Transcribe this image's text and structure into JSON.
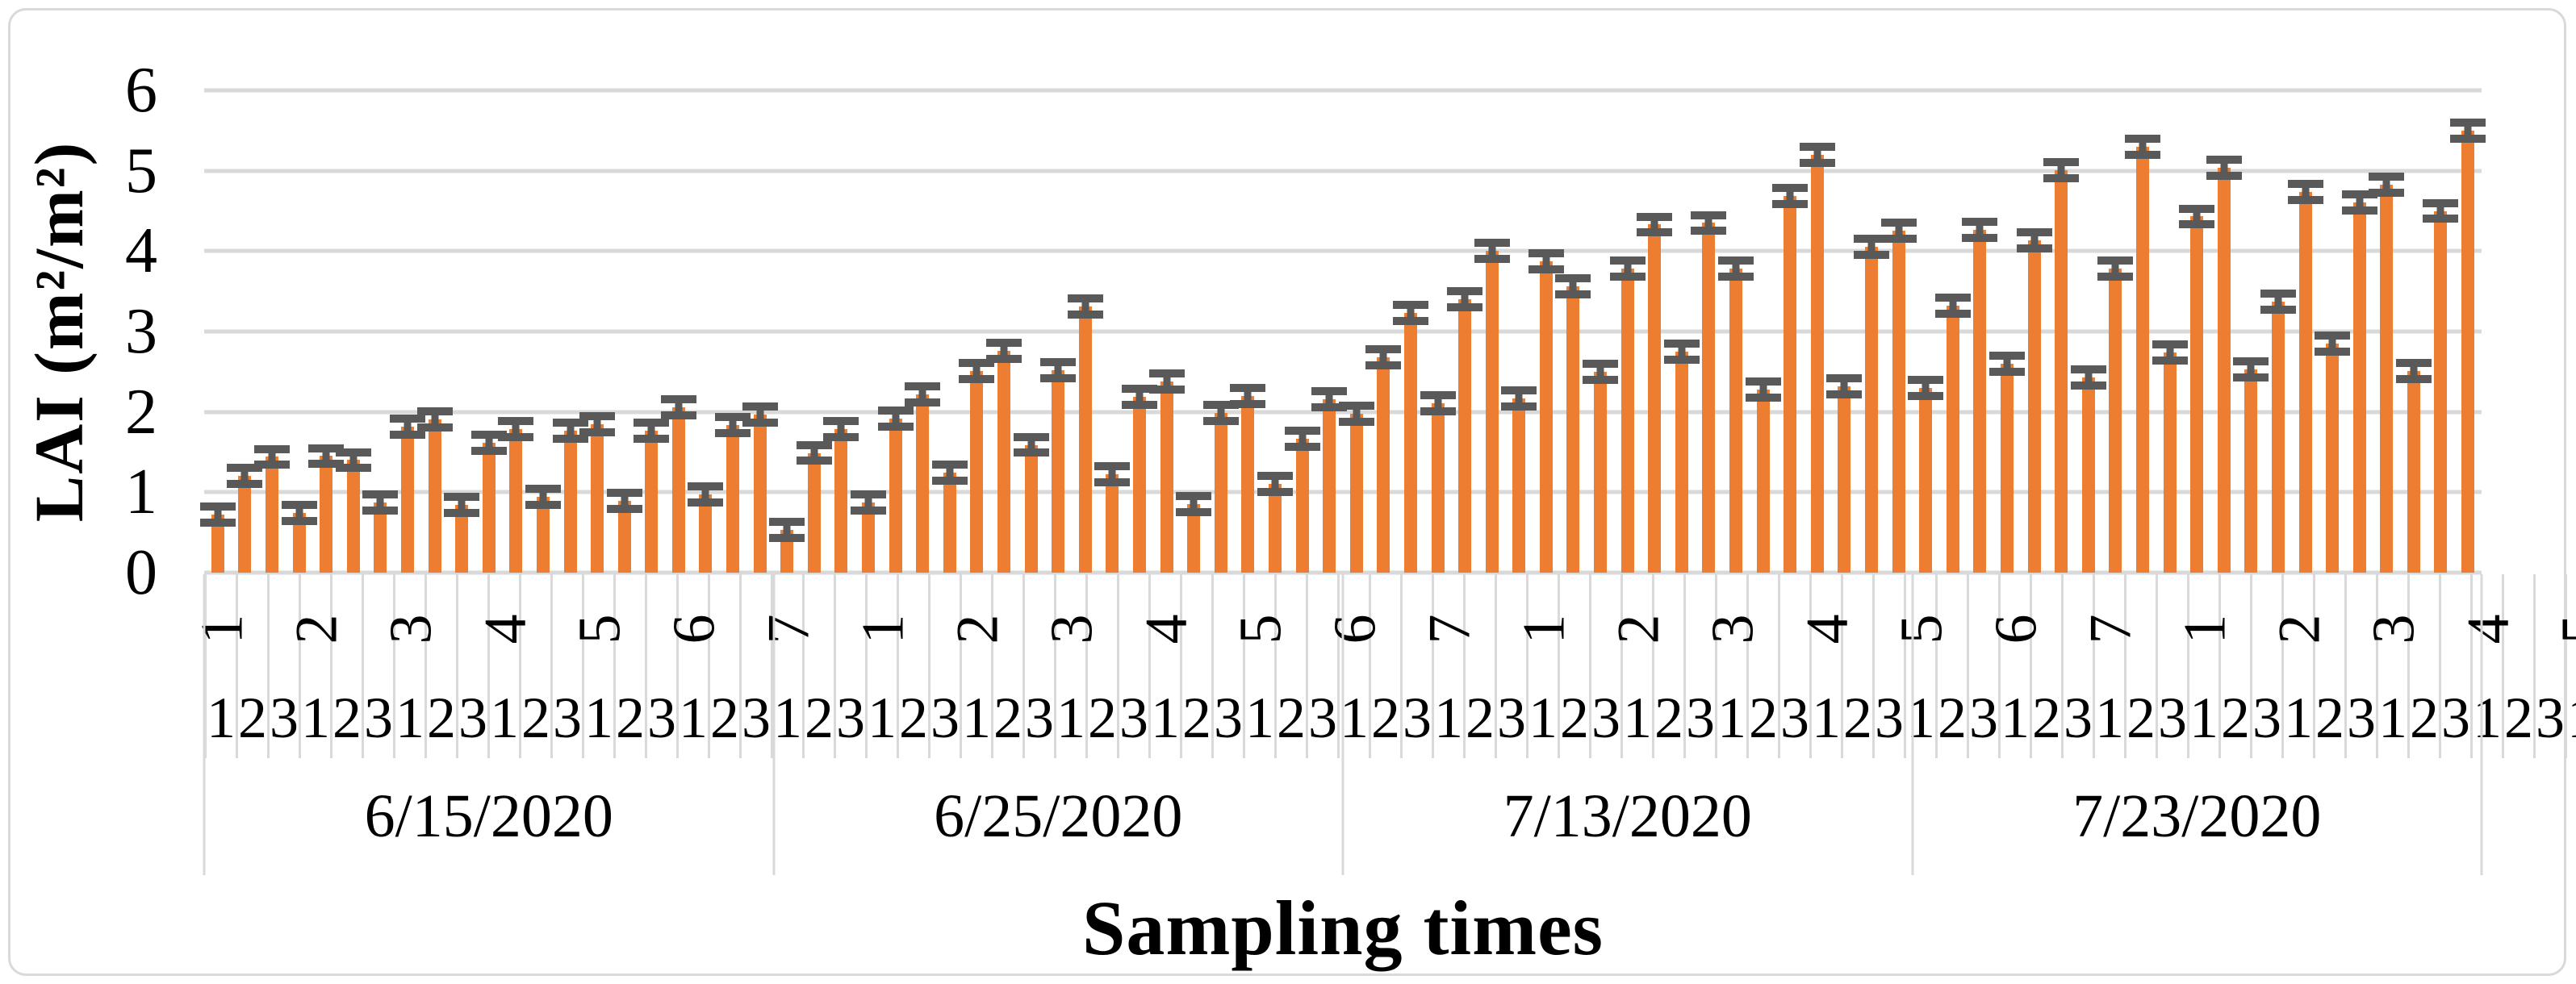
{
  "chart_data": {
    "type": "bar",
    "title": "",
    "xlabel": "Sampling times",
    "ylabel": "LAI (m²/m²)",
    "ylim": [
      0,
      6
    ],
    "yticks": [
      "0",
      "1",
      "2",
      "3",
      "4",
      "5",
      "6"
    ],
    "grid": true,
    "legend_position": "none",
    "bar_color": "#ED7D31",
    "error_bar_color": "#595959",
    "gridline_color": "#D9D9D9",
    "error_plus_minus": 0.15,
    "bar_labels": [
      "1",
      "2",
      "3"
    ],
    "subgroup_labels": [
      "1",
      "2",
      "3",
      "4",
      "5",
      "6",
      "7"
    ],
    "groups": [
      {
        "date": "6/15/2020",
        "values": [
          [
            0.72,
            1.2,
            1.44
          ],
          [
            0.74,
            1.45,
            1.4
          ],
          [
            0.87,
            1.82,
            1.91
          ],
          [
            0.84,
            1.62,
            1.79
          ],
          [
            0.94,
            1.77,
            1.85
          ],
          [
            0.89,
            1.77,
            2.06
          ],
          [
            0.97,
            1.84,
            1.97
          ]
        ]
      },
      {
        "date": "6/25/2020",
        "values": [
          [
            0.53,
            1.49,
            1.79
          ],
          [
            0.87,
            1.92,
            2.22
          ],
          [
            1.24,
            2.51,
            2.76
          ],
          [
            1.59,
            2.52,
            3.31
          ],
          [
            1.22,
            2.19,
            2.38
          ],
          [
            0.85,
            1.99,
            2.2
          ],
          [
            1.1,
            1.67,
            2.16
          ]
        ]
      },
      {
        "date": "7/13/2020",
        "values": [
          [
            1.98,
            2.68,
            3.23
          ],
          [
            2.11,
            3.4,
            4.0
          ],
          [
            2.17,
            3.87,
            3.56
          ],
          [
            2.5,
            3.78,
            4.33
          ],
          [
            2.75,
            4.35,
            3.78
          ],
          [
            2.28,
            4.69,
            5.2
          ],
          [
            2.32,
            4.05,
            4.25
          ]
        ]
      },
      {
        "date": "7/23/2020",
        "values": [
          [
            2.3,
            3.32,
            4.26
          ],
          [
            2.6,
            4.13,
            5.01
          ],
          [
            2.43,
            3.78,
            5.3
          ],
          [
            2.74,
            4.43,
            5.04
          ],
          [
            2.53,
            3.37,
            4.74
          ],
          [
            2.85,
            4.61,
            4.83
          ],
          [
            2.51,
            4.5,
            5.5
          ]
        ]
      }
    ]
  }
}
